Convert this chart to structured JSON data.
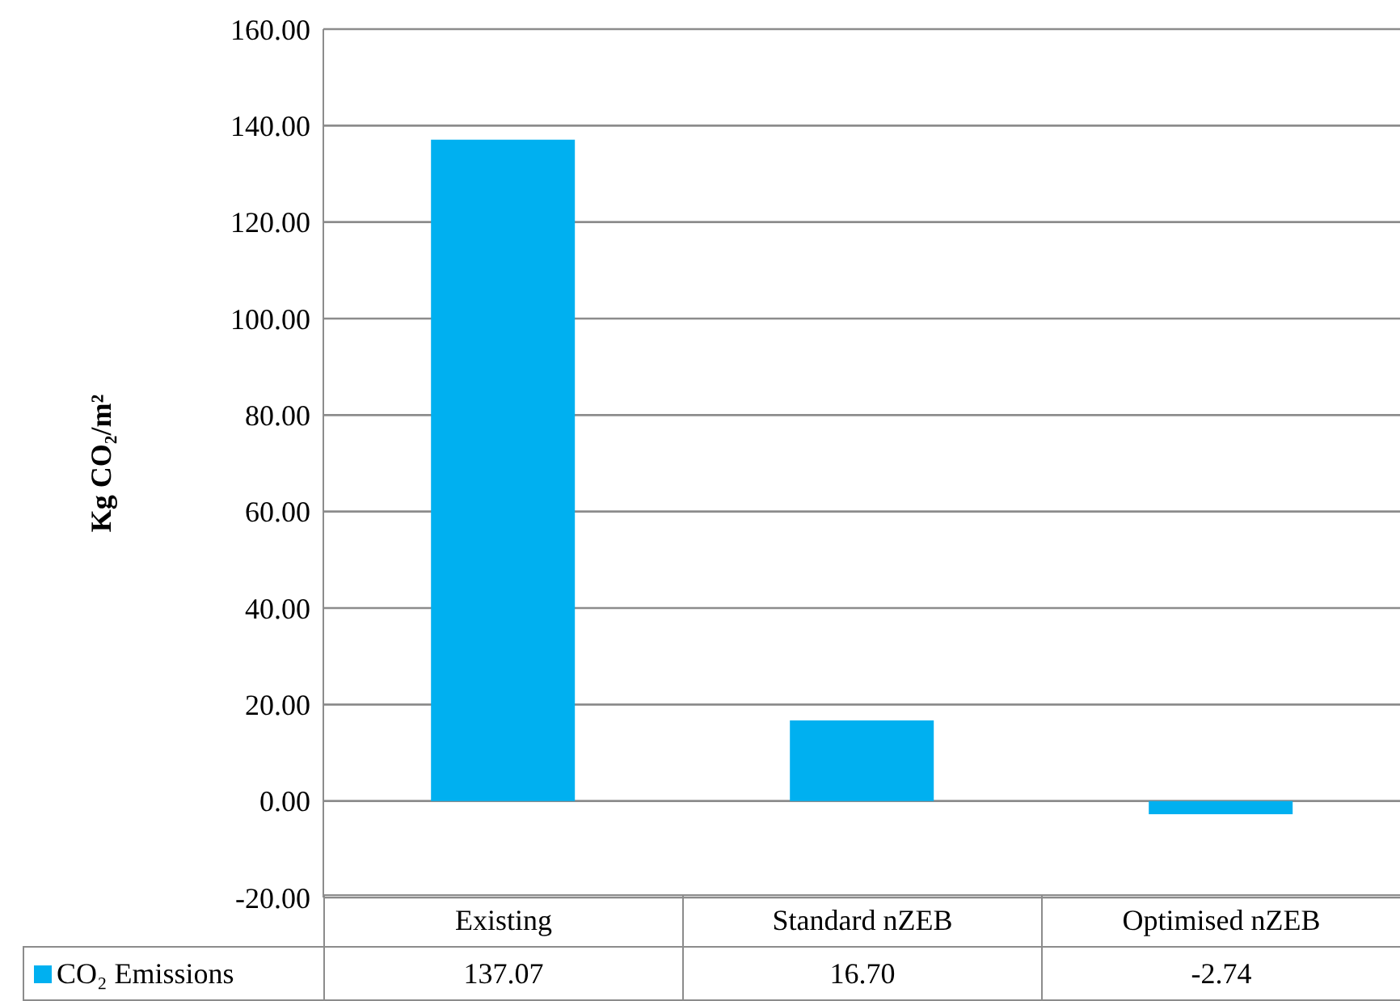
{
  "chart_data": {
    "type": "bar",
    "ylabel": "Kg CO₂/m²",
    "categories": [
      "Existing",
      "Standard nZEB",
      "Optimised nZEB"
    ],
    "series": [
      {
        "name": "CO₂ Emissions",
        "color": "#00b0f0",
        "values": [
          137.07,
          16.7,
          -2.74
        ],
        "value_labels": [
          "137.07",
          "16.70",
          "-2.74"
        ]
      }
    ],
    "ylim": [
      -20,
      160
    ],
    "yticks": [
      {
        "value": -20,
        "label": "-20.00"
      },
      {
        "value": 0,
        "label": "0.00"
      },
      {
        "value": 20,
        "label": "20.00"
      },
      {
        "value": 40,
        "label": "40.00"
      },
      {
        "value": 60,
        "label": "60.00"
      },
      {
        "value": 80,
        "label": "80.00"
      },
      {
        "value": 100,
        "label": "100.00"
      },
      {
        "value": 120,
        "label": "120.00"
      },
      {
        "value": 140,
        "label": "140.00"
      },
      {
        "value": 160,
        "label": "160.00"
      }
    ],
    "grid": "y",
    "legend": "bottom"
  }
}
